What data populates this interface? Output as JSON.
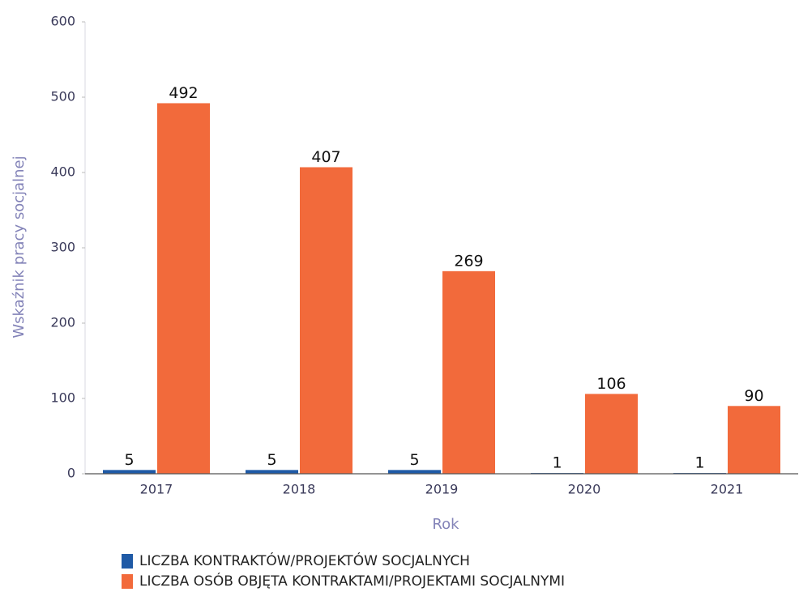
{
  "chart_data": {
    "type": "bar",
    "categories": [
      "2017",
      "2018",
      "2019",
      "2020",
      "2021"
    ],
    "series": [
      {
        "name": "LICZBA KONTRAKTÓW/PROJEKTÓW SOCJALNYCH",
        "color": "#1f5aa6",
        "values": [
          5,
          5,
          5,
          1,
          1
        ]
      },
      {
        "name": "LICZBA OSÓB OBJĘTA KONTRAKTAMI/PROJEKTAMI SOCJALNYMI",
        "color": "#f26a3b",
        "values": [
          492,
          407,
          269,
          106,
          90
        ]
      }
    ],
    "ylabel": "Wskaźnik pracy socjalnej",
    "xlabel": "Rok",
    "ylim": [
      0,
      600
    ],
    "yticks": [
      0,
      100,
      200,
      300,
      400,
      500,
      600
    ]
  }
}
